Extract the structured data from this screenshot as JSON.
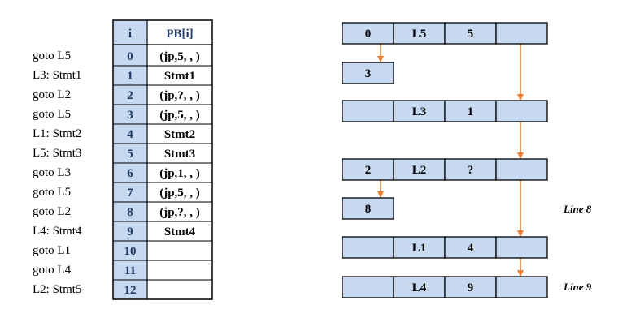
{
  "source_lines": [
    "goto L5",
    "L3: Stmt1",
    "goto L2",
    "goto L5",
    "L1: Stmt2",
    "L5: Stmt3",
    "goto L3",
    "goto L5",
    "goto L2",
    "L4: Stmt4",
    "goto L1",
    "goto L4",
    "L2: Stmt5"
  ],
  "table": {
    "header_index": "i",
    "header_pb": "PB[i]",
    "rows": [
      {
        "i": "0",
        "pb": "(jp,5, , )"
      },
      {
        "i": "1",
        "pb": "Stmt1"
      },
      {
        "i": "2",
        "pb": "(jp,?, , )"
      },
      {
        "i": "3",
        "pb": "(jp,5, , )"
      },
      {
        "i": "4",
        "pb": "Stmt2"
      },
      {
        "i": "5",
        "pb": "Stmt3"
      },
      {
        "i": "6",
        "pb": "(jp,1, , )"
      },
      {
        "i": "7",
        "pb": "(jp,5, , )"
      },
      {
        "i": "8",
        "pb": "(jp,?, , )"
      },
      {
        "i": "9",
        "pb": "Stmt4"
      },
      {
        "i": "10",
        "pb": ""
      },
      {
        "i": "11",
        "pb": ""
      },
      {
        "i": "12",
        "pb": ""
      }
    ]
  },
  "nodes": [
    {
      "id": "n0",
      "kind": "label",
      "cells": [
        "0",
        "L5",
        "5",
        ""
      ]
    },
    {
      "id": "n1",
      "kind": "chain",
      "cells": [
        "3"
      ]
    },
    {
      "id": "n2",
      "kind": "label",
      "cells": [
        "",
        "L3",
        "1",
        ""
      ]
    },
    {
      "id": "n3",
      "kind": "label",
      "cells": [
        "2",
        "L2",
        "?",
        ""
      ]
    },
    {
      "id": "n4",
      "kind": "chain",
      "cells": [
        "8"
      ]
    },
    {
      "id": "n5",
      "kind": "label",
      "cells": [
        "",
        "L1",
        "4",
        ""
      ]
    },
    {
      "id": "n6",
      "kind": "label",
      "cells": [
        "",
        "L4",
        "9",
        ""
      ]
    }
  ],
  "edges": [
    {
      "from": "n0",
      "to": "n1"
    },
    {
      "from": "n3",
      "to": "n4"
    },
    {
      "from": "n0",
      "to": "n2"
    },
    {
      "from": "n2",
      "to": "n3"
    },
    {
      "from": "n3",
      "to": "n5"
    },
    {
      "from": "n5",
      "to": "n6"
    }
  ],
  "notes": {
    "line8": "Line 8",
    "line9": "Line 9"
  },
  "colors": {
    "cell_fill": "#c6d9f1",
    "border": "#000000",
    "arrow": "#ed7d31",
    "index_text": "#1f3864"
  }
}
